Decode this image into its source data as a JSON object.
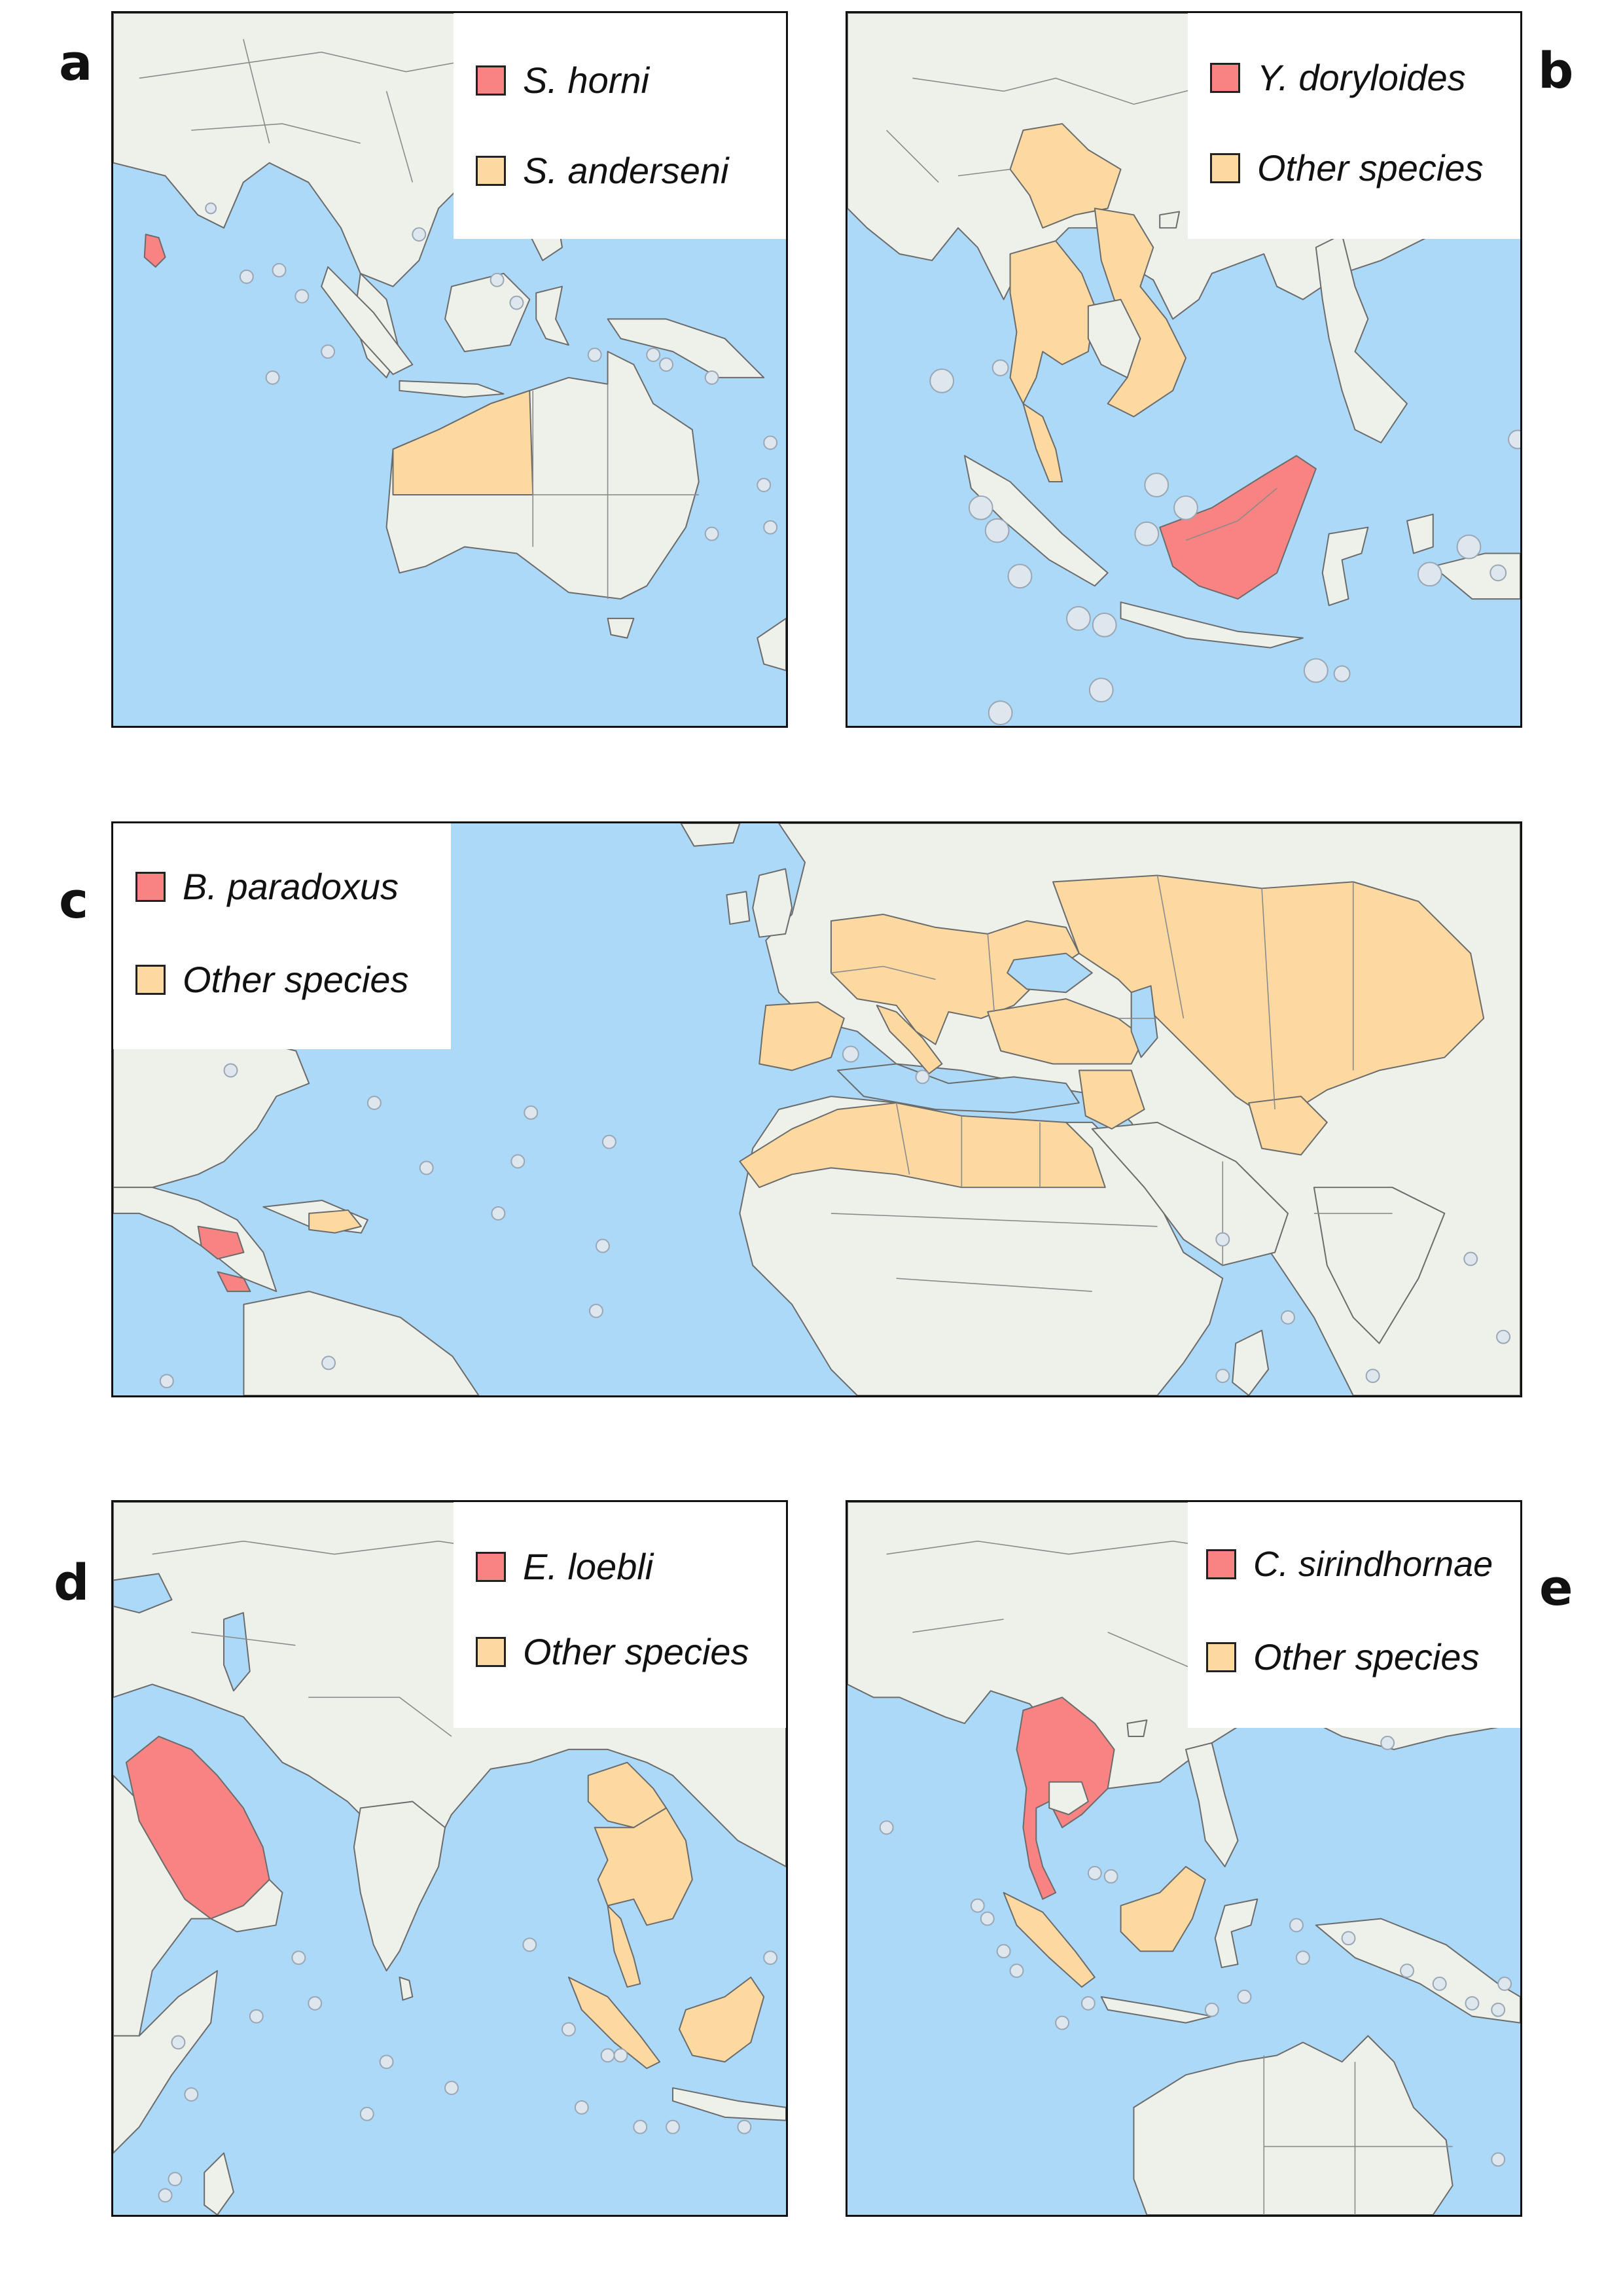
{
  "colors": {
    "ocean": "#acd9f7",
    "land": "#edf1e9",
    "target_species": "#f88383",
    "other_species": "#fcd9a1",
    "frame": "#111111"
  },
  "panels": [
    {
      "label": "a",
      "region": "South Asia, Southeast Asia and Australia",
      "legend": [
        {
          "name": "S. horni",
          "color": "#f88383",
          "highlighted_regions": [
            "Sri Lanka"
          ]
        },
        {
          "name": "S. anderseni",
          "color": "#fcd9a1",
          "highlighted_regions": [
            "Western Australia (north)"
          ]
        }
      ]
    },
    {
      "label": "b",
      "region": "Southeast Asia",
      "legend": [
        {
          "name": "Y. doryloides",
          "color": "#f88383",
          "highlighted_regions": [
            "Borneo"
          ]
        },
        {
          "name": "Other species",
          "color": "#fcd9a1",
          "highlighted_regions": [
            "Yunnan",
            "Thailand",
            "Vietnam",
            "Peninsular Malaysia"
          ]
        }
      ]
    },
    {
      "label": "c",
      "region": "Atlantic, Europe, North Africa and Central America",
      "legend": [
        {
          "name": "B. paradoxus",
          "color": "#f88383",
          "highlighted_regions": [
            "Honduras",
            "Costa Rica"
          ]
        },
        {
          "name": "Other species",
          "color": "#fcd9a1",
          "highlighted_regions": [
            "Southern Europe",
            "North Africa",
            "Middle East",
            "Central Asia",
            "Hispaniola"
          ]
        }
      ]
    },
    {
      "label": "d",
      "region": "Arabia, South Asia and Southeast Asia",
      "legend": [
        {
          "name": "E. loebli",
          "color": "#f88383",
          "highlighted_regions": [
            "Saudi Arabia"
          ]
        },
        {
          "name": "Other species",
          "color": "#fcd9a1",
          "highlighted_regions": [
            "Yunnan",
            "Thailand",
            "Vietnam",
            "Malaysia",
            "Sumatra",
            "Borneo"
          ]
        }
      ]
    },
    {
      "label": "e",
      "region": "Southeast Asia and Australia",
      "legend": [
        {
          "name": "C. sirindhornae",
          "color": "#f88383",
          "highlighted_regions": [
            "Thailand",
            "Laos",
            "Vietnam"
          ]
        },
        {
          "name": "Other species",
          "color": "#fcd9a1",
          "highlighted_regions": [
            "Sumatra",
            "Borneo"
          ]
        }
      ]
    }
  ]
}
